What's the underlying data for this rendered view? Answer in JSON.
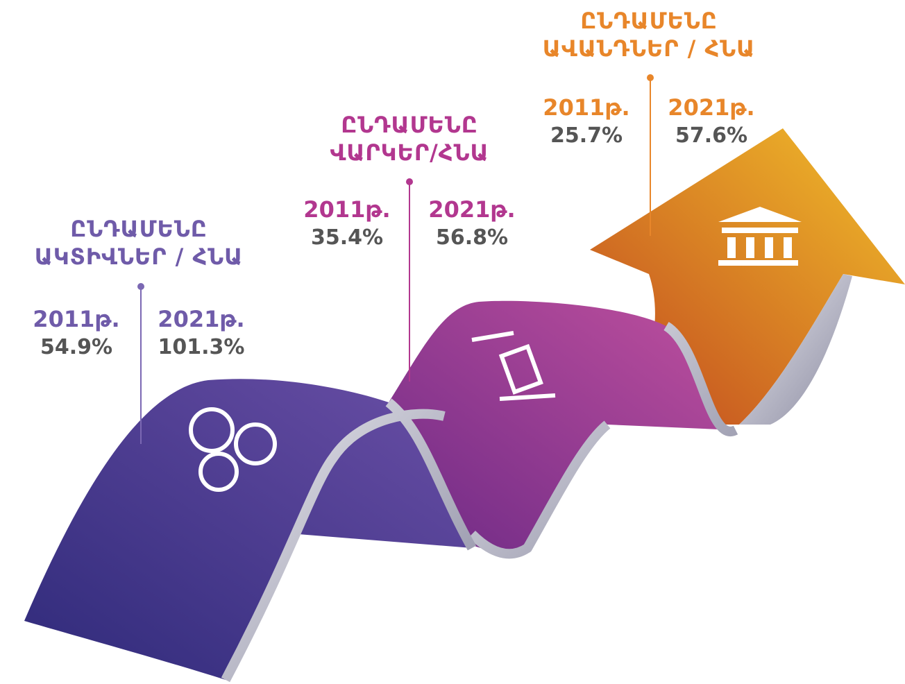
{
  "items": [
    {
      "title_lines": [
        "ԸՆԴԱՄԵՆԸ",
        "ԱԿՏԻՎՆԵՐ / ՀՆԱ"
      ],
      "columns": [
        {
          "year": "2011թ.",
          "value": "54.9%"
        },
        {
          "year": "2021թ.",
          "value": "101.3%"
        }
      ]
    },
    {
      "title_lines": [
        "ԸՆԴԱՄԵՆԸ",
        "ՎԱՐԿԵՐ/ՀՆԱ"
      ],
      "columns": [
        {
          "year": "2011թ.",
          "value": "35.4%"
        },
        {
          "year": "2021թ.",
          "value": "56.8%"
        }
      ]
    },
    {
      "title_lines": [
        "ԸՆԴԱՄԵՆԸ",
        "ԱՎԱՆԴՆԵՐ / ՀՆԱ"
      ],
      "columns": [
        {
          "year": "2011թ.",
          "value": "25.7%"
        },
        {
          "year": "2021թ.",
          "value": "57.6%"
        }
      ]
    }
  ]
}
